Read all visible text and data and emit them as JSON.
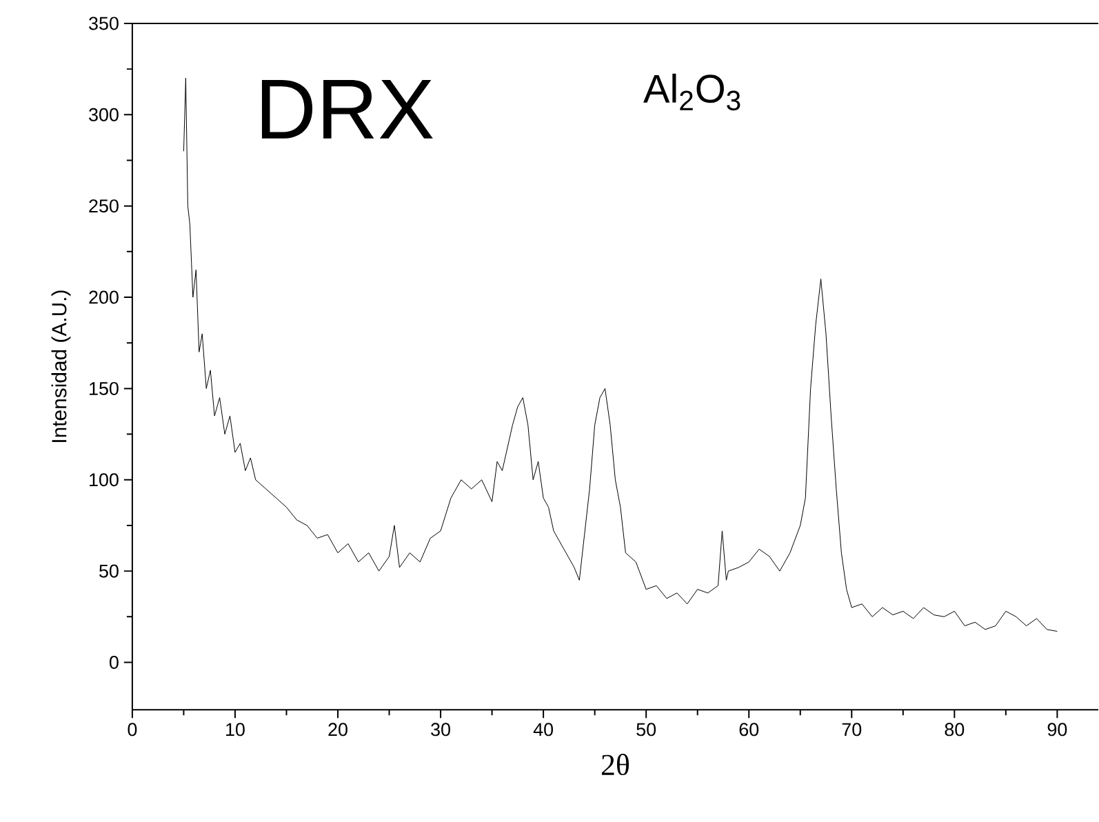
{
  "chart_data": {
    "type": "line",
    "title": "DRX",
    "annotations": [
      "Al$_{2}$O$_{3}$"
    ],
    "xlabel": "2θ",
    "ylabel": "Intensidad (A.U.)",
    "xlim": [
      0,
      94
    ],
    "ylim": [
      -26,
      350
    ],
    "xticks": [
      0,
      10,
      20,
      30,
      40,
      50,
      60,
      70,
      80,
      90
    ],
    "yticks": [
      0,
      50,
      100,
      150,
      200,
      250,
      300,
      350
    ],
    "series": [
      {
        "color": "#000000",
        "x": [
          5.0,
          5.2,
          5.4,
          5.6,
          5.9,
          6.2,
          6.5,
          6.8,
          7.2,
          7.6,
          8.0,
          8.5,
          9.0,
          9.5,
          10,
          10.5,
          11,
          11.5,
          12,
          13,
          14,
          15,
          16,
          17,
          18,
          19,
          20,
          21,
          22,
          23,
          24,
          25,
          25.5,
          26,
          27,
          28,
          29,
          30,
          31,
          32,
          33,
          34,
          35,
          35.5,
          36,
          37,
          37.5,
          38,
          38.5,
          39,
          39.5,
          40,
          40.5,
          41,
          42,
          43,
          43.5,
          44,
          44.5,
          45,
          45.5,
          46,
          46.5,
          47,
          47.5,
          48,
          49,
          50,
          51,
          52,
          53,
          54,
          55,
          56,
          57,
          57.4,
          57.8,
          58,
          59,
          60,
          61,
          62,
          63,
          64,
          65,
          65.5,
          66,
          66.5,
          67,
          67.5,
          68,
          68.5,
          69,
          69.5,
          70,
          71,
          72,
          73,
          74,
          75,
          76,
          77,
          78,
          79,
          80,
          81,
          82,
          83,
          84,
          85,
          86,
          87,
          88,
          89,
          90
        ],
        "values": [
          280,
          320,
          250,
          240,
          200,
          215,
          170,
          180,
          150,
          160,
          135,
          145,
          125,
          135,
          115,
          120,
          105,
          112,
          100,
          95,
          90,
          85,
          78,
          75,
          68,
          70,
          60,
          65,
          55,
          60,
          50,
          58,
          75,
          52,
          60,
          55,
          68,
          72,
          90,
          100,
          95,
          100,
          88,
          110,
          105,
          130,
          140,
          145,
          130,
          100,
          110,
          90,
          85,
          72,
          62,
          52,
          45,
          70,
          95,
          130,
          145,
          150,
          130,
          100,
          85,
          60,
          55,
          40,
          42,
          35,
          38,
          32,
          40,
          38,
          42,
          72,
          45,
          50,
          52,
          55,
          62,
          58,
          50,
          60,
          75,
          90,
          150,
          185,
          210,
          180,
          135,
          95,
          60,
          40,
          30,
          32,
          25,
          30,
          26,
          28,
          24,
          30,
          26,
          25,
          28,
          20,
          22,
          18,
          20,
          28,
          25,
          20,
          24,
          18,
          17
        ]
      }
    ]
  }
}
